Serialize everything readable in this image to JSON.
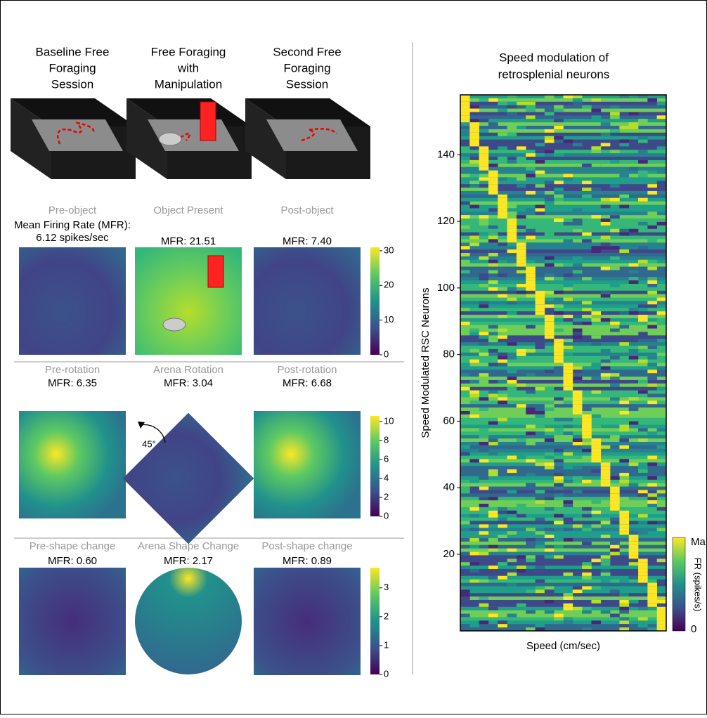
{
  "left": {
    "sessions": [
      [
        "Baseline Free",
        "Foraging",
        "Session"
      ],
      [
        "Free Foraging",
        "with",
        "Manipulation"
      ],
      [
        "Second Free",
        "Foraging",
        "Session"
      ]
    ],
    "rows": [
      {
        "conditions": [
          "Pre-object",
          "Object Present",
          "Post-object"
        ],
        "rates": [
          [
            "Mean Firing Rate (MFR):",
            "6.12 spikes/sec"
          ],
          [
            "MFR: 21.51"
          ],
          [
            "MFR: 7.40"
          ]
        ],
        "colorbar": {
          "lim": [
            0,
            31
          ],
          "ticks": [
            0,
            10,
            20,
            30
          ]
        }
      },
      {
        "conditions": [
          "Pre-rotation",
          "Arena Rotation",
          "Post-rotation"
        ],
        "rates": [
          [
            "MFR: 6.35"
          ],
          [
            "MFR: 3.04"
          ],
          [
            "MFR: 6.68"
          ]
        ],
        "rotation": "45°",
        "colorbar": {
          "lim": [
            0,
            10.6
          ],
          "ticks": [
            0,
            2,
            4,
            6,
            8,
            10
          ]
        }
      },
      {
        "conditions": [
          "Pre-shape change",
          "Arena Shape Change",
          "Post-shape change"
        ],
        "rates": [
          [
            "MFR: 0.60"
          ],
          [
            "MFR: 2.17"
          ],
          [
            "MFR: 0.89"
          ]
        ],
        "colorbar": {
          "lim": [
            0,
            3.7
          ],
          "ticks": [
            0,
            1,
            2,
            3
          ]
        }
      }
    ]
  },
  "chart_data": {
    "type": "heatmap",
    "title": [
      "Speed modulation of",
      "retrosplenial neurons"
    ],
    "ylabel": "Speed Modulated RSC Neurons",
    "xlabel": "Speed (cm/sec)",
    "ylim": [
      -3,
      158
    ],
    "yticks": [
      20,
      40,
      60,
      80,
      100,
      120,
      140
    ],
    "colorbar": {
      "top": "Ma",
      "bottom": "0",
      "title": "FR (spikes/s)"
    }
  }
}
